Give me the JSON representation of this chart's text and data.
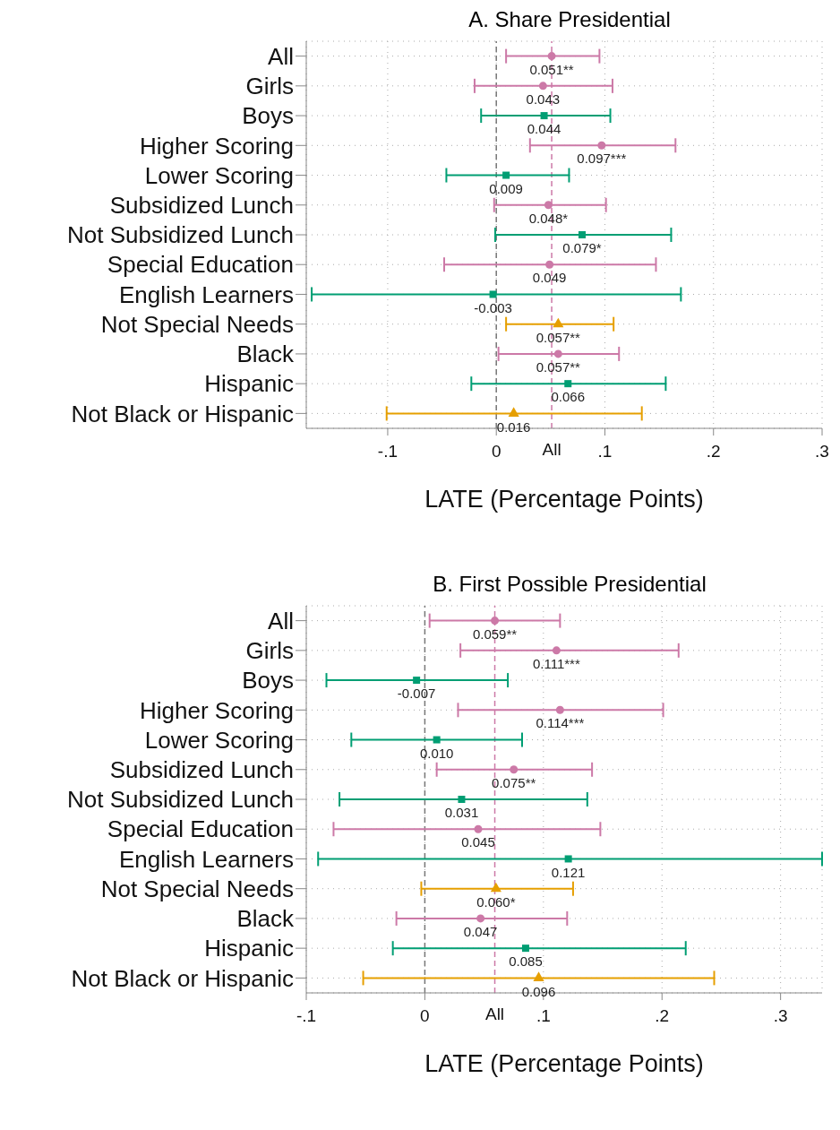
{
  "chart_data": [
    {
      "type": "scatter",
      "orientation": "horizontal",
      "title": "A. Share Presidential",
      "xlabel": "LATE (Percentage Points)",
      "categories": [
        "All",
        "Girls",
        "Boys",
        "Higher Scoring",
        "Lower Scoring",
        "Subsidized Lunch",
        "Not Subsidized Lunch",
        "Special Education",
        "English Learners",
        "Not Special Needs",
        "Black",
        "Hispanic",
        "Not Black or Hispanic"
      ],
      "series": [
        {
          "color": "#cc79a7",
          "marker": "circle",
          "values": [
            0.051,
            0.043,
            null,
            0.097,
            null,
            0.048,
            null,
            0.049,
            null,
            null,
            0.057,
            null,
            null
          ],
          "errors": [
            [
              0.009,
              0.095
            ],
            [
              -0.02,
              0.107
            ],
            null,
            [
              0.031,
              0.165
            ],
            null,
            [
              -0.002,
              0.101
            ],
            null,
            [
              -0.048,
              0.147
            ],
            null,
            null,
            [
              0.002,
              0.113
            ],
            null,
            null
          ],
          "value_labels": [
            "0.051**",
            "0.043",
            null,
            "0.097***",
            null,
            "0.048*",
            null,
            "0.049",
            null,
            null,
            "0.057**",
            null,
            null
          ]
        },
        {
          "color": "#009e73",
          "marker": "square",
          "values": [
            null,
            null,
            0.044,
            null,
            0.009,
            null,
            0.079,
            null,
            -0.003,
            null,
            null,
            0.066,
            null
          ],
          "errors": [
            null,
            null,
            [
              -0.014,
              0.105
            ],
            null,
            [
              -0.046,
              0.067
            ],
            null,
            [
              -0.001,
              0.161
            ],
            null,
            [
              -0.17,
              0.17
            ],
            null,
            null,
            [
              -0.023,
              0.156
            ],
            null
          ],
          "value_labels": [
            null,
            null,
            "0.044",
            null,
            "0.009",
            null,
            "0.079*",
            null,
            "-0.003",
            null,
            null,
            "0.066",
            null
          ]
        },
        {
          "color": "#e69f00",
          "marker": "triangle",
          "values": [
            null,
            null,
            null,
            null,
            null,
            null,
            null,
            null,
            null,
            0.057,
            null,
            null,
            0.016
          ],
          "errors": [
            null,
            null,
            null,
            null,
            null,
            null,
            null,
            null,
            null,
            [
              0.009,
              0.108
            ],
            null,
            null,
            [
              -0.101,
              0.134
            ]
          ],
          "value_labels": [
            null,
            null,
            null,
            null,
            null,
            null,
            null,
            null,
            null,
            "0.057**",
            null,
            null,
            "0.016"
          ]
        }
      ],
      "xlim": [
        -0.175,
        0.3
      ],
      "xticks": [
        {
          "value": -0.1,
          "label": "-.1"
        },
        0,
        {
          "value": 0.1,
          "label": ".1"
        },
        {
          "value": 0.2,
          "label": ".2"
        },
        {
          "value": 0.3,
          "label": ".3"
        }
      ],
      "ref_lines": [
        {
          "axis": "x",
          "value": 0,
          "color": "#777777",
          "line_style": "dashed"
        },
        {
          "axis": "x",
          "value": 0.051,
          "label": "All",
          "color": "#cc79a7",
          "line_style": "dashed"
        }
      ],
      "grid": true
    },
    {
      "type": "scatter",
      "orientation": "horizontal",
      "title": "B. First Possible Presidential",
      "xlabel": "LATE (Percentage Points)",
      "categories": [
        "All",
        "Girls",
        "Boys",
        "Higher Scoring",
        "Lower Scoring",
        "Subsidized Lunch",
        "Not Subsidized Lunch",
        "Special Education",
        "English Learners",
        "Not Special Needs",
        "Black",
        "Hispanic",
        "Not Black or Hispanic"
      ],
      "series": [
        {
          "color": "#cc79a7",
          "marker": "circle",
          "values": [
            0.059,
            0.111,
            null,
            0.114,
            null,
            0.075,
            null,
            0.045,
            null,
            null,
            0.047,
            null,
            null
          ],
          "errors": [
            [
              0.004,
              0.114
            ],
            [
              0.03,
              0.214
            ],
            null,
            [
              0.028,
              0.201
            ],
            null,
            [
              0.01,
              0.141
            ],
            null,
            [
              -0.077,
              0.148
            ],
            null,
            null,
            [
              -0.024,
              0.12
            ],
            null,
            null
          ],
          "value_labels": [
            "0.059**",
            "0.111***",
            null,
            "0.114***",
            null,
            "0.075**",
            null,
            "0.045",
            null,
            null,
            "0.047",
            null,
            null
          ]
        },
        {
          "color": "#009e73",
          "marker": "square",
          "values": [
            null,
            null,
            -0.007,
            null,
            0.01,
            null,
            0.031,
            null,
            0.121,
            null,
            null,
            0.085,
            null
          ],
          "errors": [
            null,
            null,
            [
              -0.083,
              0.07
            ],
            null,
            [
              -0.062,
              0.082
            ],
            null,
            [
              -0.072,
              0.137
            ],
            null,
            [
              -0.09,
              0.335
            ],
            null,
            null,
            [
              -0.027,
              0.22
            ],
            null
          ],
          "value_labels": [
            null,
            null,
            "-0.007",
            null,
            "0.010",
            null,
            "0.031",
            null,
            "0.121",
            null,
            null,
            "0.085",
            null
          ]
        },
        {
          "color": "#e69f00",
          "marker": "triangle",
          "values": [
            null,
            null,
            null,
            null,
            null,
            null,
            null,
            null,
            null,
            0.06,
            null,
            null,
            0.096
          ],
          "errors": [
            null,
            null,
            null,
            null,
            null,
            null,
            null,
            null,
            null,
            [
              -0.003,
              0.125
            ],
            null,
            null,
            [
              -0.052,
              0.244
            ]
          ],
          "value_labels": [
            null,
            null,
            null,
            null,
            null,
            null,
            null,
            null,
            null,
            "0.060*",
            null,
            null,
            "0.096"
          ]
        }
      ],
      "xlim": [
        -0.1,
        0.335
      ],
      "xticks": [
        {
          "value": -0.1,
          "label": "-.1"
        },
        0,
        {
          "value": 0.1,
          "label": ".1"
        },
        {
          "value": 0.2,
          "label": ".2"
        },
        {
          "value": 0.3,
          "label": ".3"
        }
      ],
      "ref_lines": [
        {
          "axis": "x",
          "value": 0,
          "color": "#777777",
          "line_style": "dashed"
        },
        {
          "axis": "x",
          "value": 0.059,
          "label": "All",
          "color": "#cc79a7",
          "line_style": "dashed"
        }
      ],
      "grid": true
    }
  ]
}
